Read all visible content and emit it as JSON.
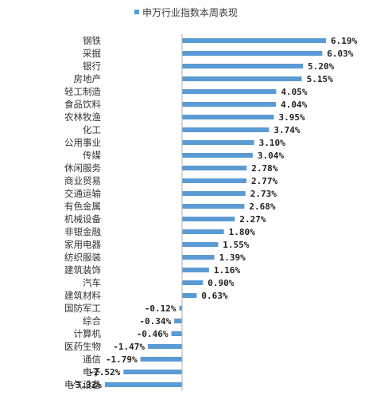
{
  "chart_data": {
    "type": "bar",
    "orientation": "horizontal",
    "series": [
      {
        "name": "申万行业指数本周表现",
        "color": "#5B9BD5",
        "values": [
          6.19,
          6.03,
          5.2,
          5.15,
          4.05,
          4.04,
          3.95,
          3.74,
          3.1,
          3.04,
          2.78,
          2.77,
          2.73,
          2.68,
          2.27,
          1.8,
          1.55,
          1.39,
          1.16,
          0.9,
          0.63,
          -0.12,
          -0.34,
          -0.46,
          -1.47,
          -1.79,
          -2.52,
          -3.32
        ],
        "labels": [
          "6.19%",
          "6.03%",
          "5.20%",
          "5.15%",
          "4.05%",
          "4.04%",
          "3.95%",
          "3.74%",
          "3.10%",
          "3.04%",
          "2.78%",
          "2.77%",
          "2.73%",
          "2.68%",
          "2.27%",
          "1.80%",
          "1.55%",
          "1.39%",
          "1.16%",
          "0.90%",
          "0.63%",
          "-0.12%",
          "-0.34%",
          "-0.46%",
          "-1.47%",
          "-1.79%",
          "-2.52%",
          "-3.32%"
        ]
      }
    ],
    "categories": [
      "钢铁",
      "采掘",
      "银行",
      "房地产",
      "轻工制造",
      "食品饮料",
      "农林牧渔",
      "化工",
      "公用事业",
      "传媒",
      "休闲服务",
      "商业贸易",
      "交通运输",
      "有色金属",
      "机械设备",
      "非银金融",
      "家用电器",
      "纺织服装",
      "建筑装饰",
      "汽车",
      "建筑材料",
      "国防军工",
      "综合",
      "计算机",
      "医药生物",
      "通信",
      "电子",
      "电气设备"
    ],
    "legend": {
      "position": "top",
      "label": "申万行业指数本周表现"
    },
    "axis": {
      "unit": "%",
      "grid": false,
      "xlim": [
        -3.32,
        6.19
      ]
    }
  }
}
